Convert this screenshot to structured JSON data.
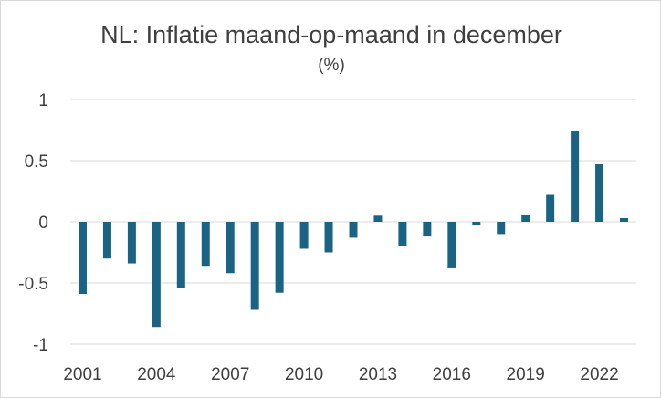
{
  "chart_data": {
    "type": "bar",
    "title": "NL: Inflatie maand-op-maand in december",
    "subtitle": "(%)",
    "xlabel": "",
    "ylabel": "",
    "categories": [
      "2001",
      "2002",
      "2003",
      "2004",
      "2005",
      "2006",
      "2007",
      "2008",
      "2009",
      "2010",
      "2011",
      "2012",
      "2013",
      "2014",
      "2015",
      "2016",
      "2017",
      "2018",
      "2019",
      "2020",
      "2021",
      "2022",
      "2023"
    ],
    "x_tick_labels": [
      "2001",
      "2004",
      "2007",
      "2010",
      "2013",
      "2016",
      "2019",
      "2022"
    ],
    "y_tick_labels": [
      "1",
      "0.5",
      "0",
      "-0.5",
      "-1"
    ],
    "ylim": [
      -1,
      1
    ],
    "grid": true,
    "series": [
      {
        "values": [
          -0.59,
          -0.3,
          -0.34,
          -0.86,
          -0.54,
          -0.36,
          -0.42,
          -0.72,
          -0.58,
          -0.22,
          -0.25,
          -0.13,
          0.05,
          -0.2,
          -0.12,
          -0.38,
          -0.03,
          -0.1,
          0.06,
          0.22,
          0.74,
          0.47,
          0.03
        ],
        "color": "#1b6385"
      }
    ]
  }
}
